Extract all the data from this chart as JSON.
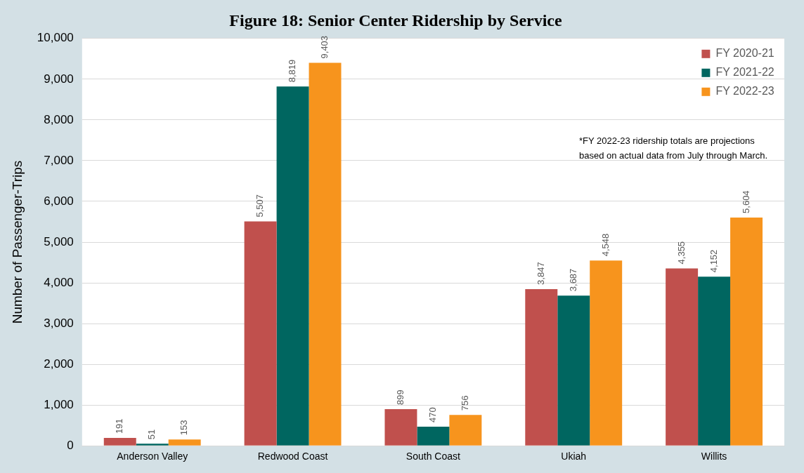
{
  "chart_data": {
    "type": "bar",
    "title": "Figure 18: Senior Center Ridership by Service",
    "ylabel": "Number of Passenger-Trips",
    "categories": [
      "Anderson Valley",
      "Redwood Coast",
      "South Coast",
      "Ukiah",
      "Willits"
    ],
    "series": [
      {
        "name": "FY 2020-21",
        "color": "#c0504d",
        "values": [
          191,
          5507,
          899,
          3847,
          4355
        ],
        "value_labels": [
          "191",
          "5,507",
          "899",
          "3,847",
          "4,355"
        ]
      },
      {
        "name": "FY 2021-22",
        "color": "#006660",
        "values": [
          51,
          8819,
          470,
          3687,
          4152
        ],
        "value_labels": [
          "51",
          "8,819",
          "470",
          "3,687",
          "4,152"
        ]
      },
      {
        "name": "FY 2022-23",
        "color": "#f7941d",
        "values": [
          153,
          9403,
          756,
          4548,
          5604
        ],
        "value_labels": [
          "153",
          "9,403",
          "756",
          "4,548",
          "5,604"
        ]
      }
    ],
    "ylim": [
      0,
      10000
    ],
    "yticks": [
      0,
      {
        "value": 1000,
        "label": "1,000"
      },
      {
        "value": 2000,
        "label": "2,000"
      },
      {
        "value": 3000,
        "label": "3,000"
      },
      {
        "value": 4000,
        "label": "4,000"
      },
      {
        "value": 5000,
        "label": "5,000"
      },
      {
        "value": 6000,
        "label": "6,000"
      },
      {
        "value": 7000,
        "label": "7,000"
      },
      {
        "value": 8000,
        "label": "8,000"
      },
      {
        "value": 9000,
        "label": "9,000"
      },
      {
        "value": 10000,
        "label": "10,000"
      }
    ],
    "grid": "y",
    "legend": "top right",
    "annotations": [
      "*FY 2022-23 ridership totals are projections based on actual data from July through March."
    ]
  }
}
